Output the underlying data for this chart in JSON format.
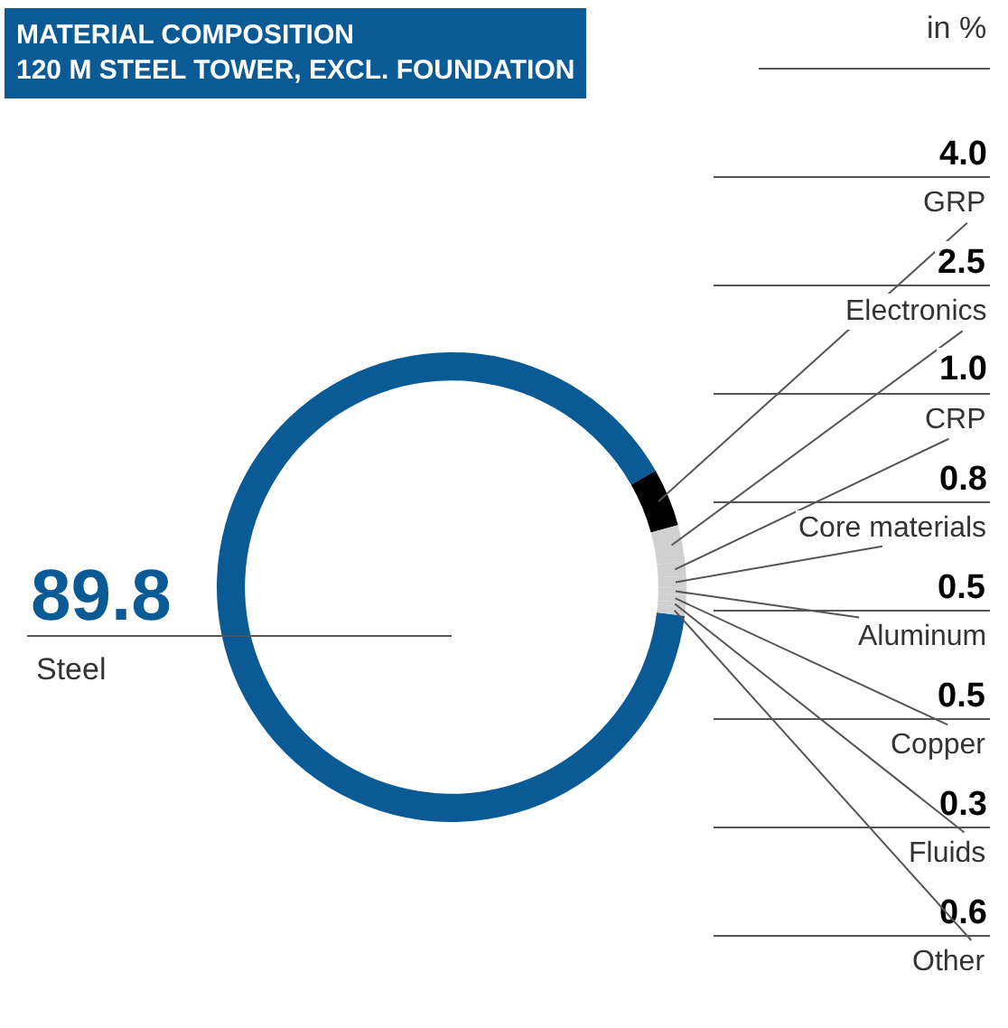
{
  "chart_data": {
    "type": "donut",
    "title": "MATERIAL COMPOSITION\n120 M STEEL TOWER, EXCL. FOUNDATION",
    "subtitle": "in %",
    "categories": [
      "Steel",
      "GRP",
      "Electronics",
      "CRP",
      "Core materials",
      "Aluminum",
      "Copper",
      "Fluids",
      "Other"
    ],
    "values": [
      89.8,
      4.0,
      2.5,
      1.0,
      0.8,
      0.5,
      0.5,
      0.3,
      0.6
    ],
    "colors": [
      "#0a5a96",
      "#000000",
      "#d0d0d0",
      "#d0d0d0",
      "#d0d0d0",
      "#d0d0d0",
      "#d0d0d0",
      "#d0d0d0",
      "#d0d0d0"
    ],
    "value_labels": [
      "89.8",
      "4.0",
      "2.5",
      "1.0",
      "0.8",
      "0.5",
      "0.5",
      "0.3",
      "0.6"
    ]
  }
}
